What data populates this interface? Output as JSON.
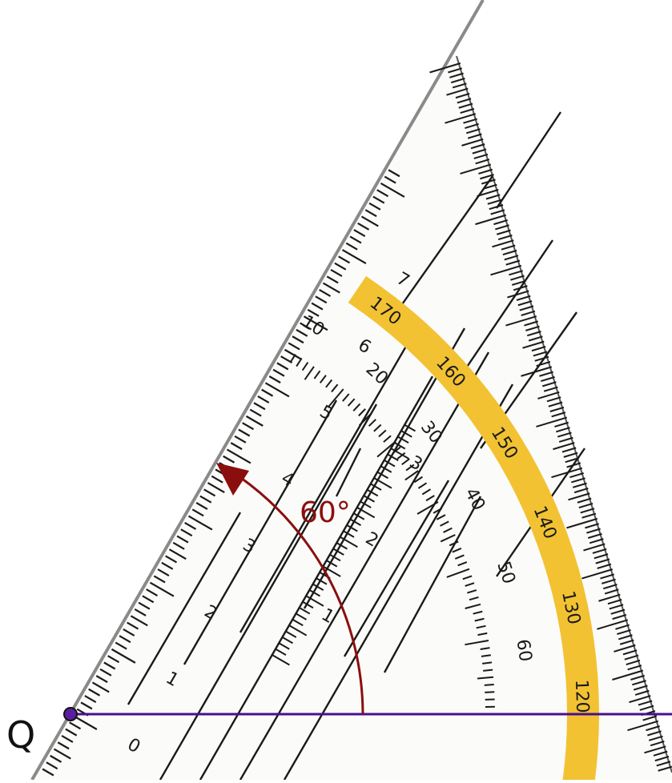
{
  "point_label": "Q",
  "angle_label": "60°",
  "colors": {
    "ray": "#4b0f8c",
    "arc": "#8b0e0e",
    "band": "#f2c232",
    "ink": "#1a1a1a",
    "edge": "#8a8a8a"
  },
  "triangle": {
    "cm_labels": [
      "0",
      "1",
      "2",
      "3",
      "4",
      "5",
      "6",
      "7"
    ],
    "inner_cm_labels": [
      "1",
      "2",
      "3"
    ],
    "inner_degree_labels": [
      "10",
      "20",
      "30",
      "40",
      "50",
      "60"
    ],
    "outer_degree_labels": [
      "170",
      "160",
      "150",
      "140",
      "130",
      "120"
    ]
  }
}
